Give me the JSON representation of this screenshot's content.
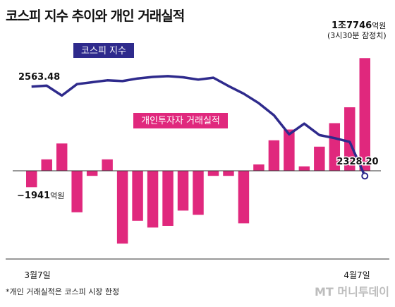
{
  "title": "코스피 지수 추이와 개인 거래실적",
  "footnote": "*개인 거래실적은 코스피 시장 한정",
  "brand": "MT 머니투데이",
  "colors": {
    "line": "#2e2a8c",
    "bar": "#e0287d",
    "axis": "#333333"
  },
  "chart_data": [
    {
      "type": "line",
      "series": [
        {
          "name": "코스피 지수",
          "values": [
            2563.48,
            2566,
            2540,
            2570,
            2575,
            2580,
            2578,
            2585,
            2589,
            2591,
            2588,
            2582,
            2587,
            2565,
            2545,
            2520,
            2488,
            2438,
            2466,
            2436,
            2428,
            2418,
            2328.2
          ]
        }
      ],
      "x": [
        "3월7일",
        "",
        "",
        "",
        "",
        "",
        "",
        "",
        "",
        "",
        "",
        "",
        "",
        "",
        "",
        "",
        "",
        "",
        "",
        "",
        "",
        "",
        "4월7일"
      ],
      "annotations": {
        "first": "2563.48",
        "last": "2328.20"
      },
      "ylim": [
        2290,
        2680
      ]
    },
    {
      "type": "bar",
      "series": [
        {
          "name": "개인투자자 거래실적",
          "values": [
            -1941,
            1800,
            4300,
            -4900,
            -600,
            1800,
            -8600,
            -5900,
            -6700,
            -6500,
            -4700,
            -5200,
            -600,
            -600,
            -6200,
            1000,
            4800,
            6500,
            700,
            3800,
            7500,
            10000,
            17746
          ]
        }
      ],
      "x": [
        "3월7일",
        "",
        "",
        "",
        "",
        "",
        "",
        "",
        "",
        "",
        "",
        "",
        "",
        "",
        "",
        "",
        "",
        "",
        "",
        "",
        "",
        "",
        "4월7일"
      ],
      "annotations": {
        "first_value": "−1941",
        "first_unit": "억원",
        "last_value": "1조7746",
        "last_unit": "억원",
        "last_note": "(3시30분 잠정치)"
      },
      "ylim": [
        -10000,
        20000
      ]
    }
  ],
  "labels": {
    "line_tag": "코스피 지수",
    "bar_tag": "개인투자자 거래실적",
    "x_start": "3월7일",
    "x_end": "4월7일"
  }
}
